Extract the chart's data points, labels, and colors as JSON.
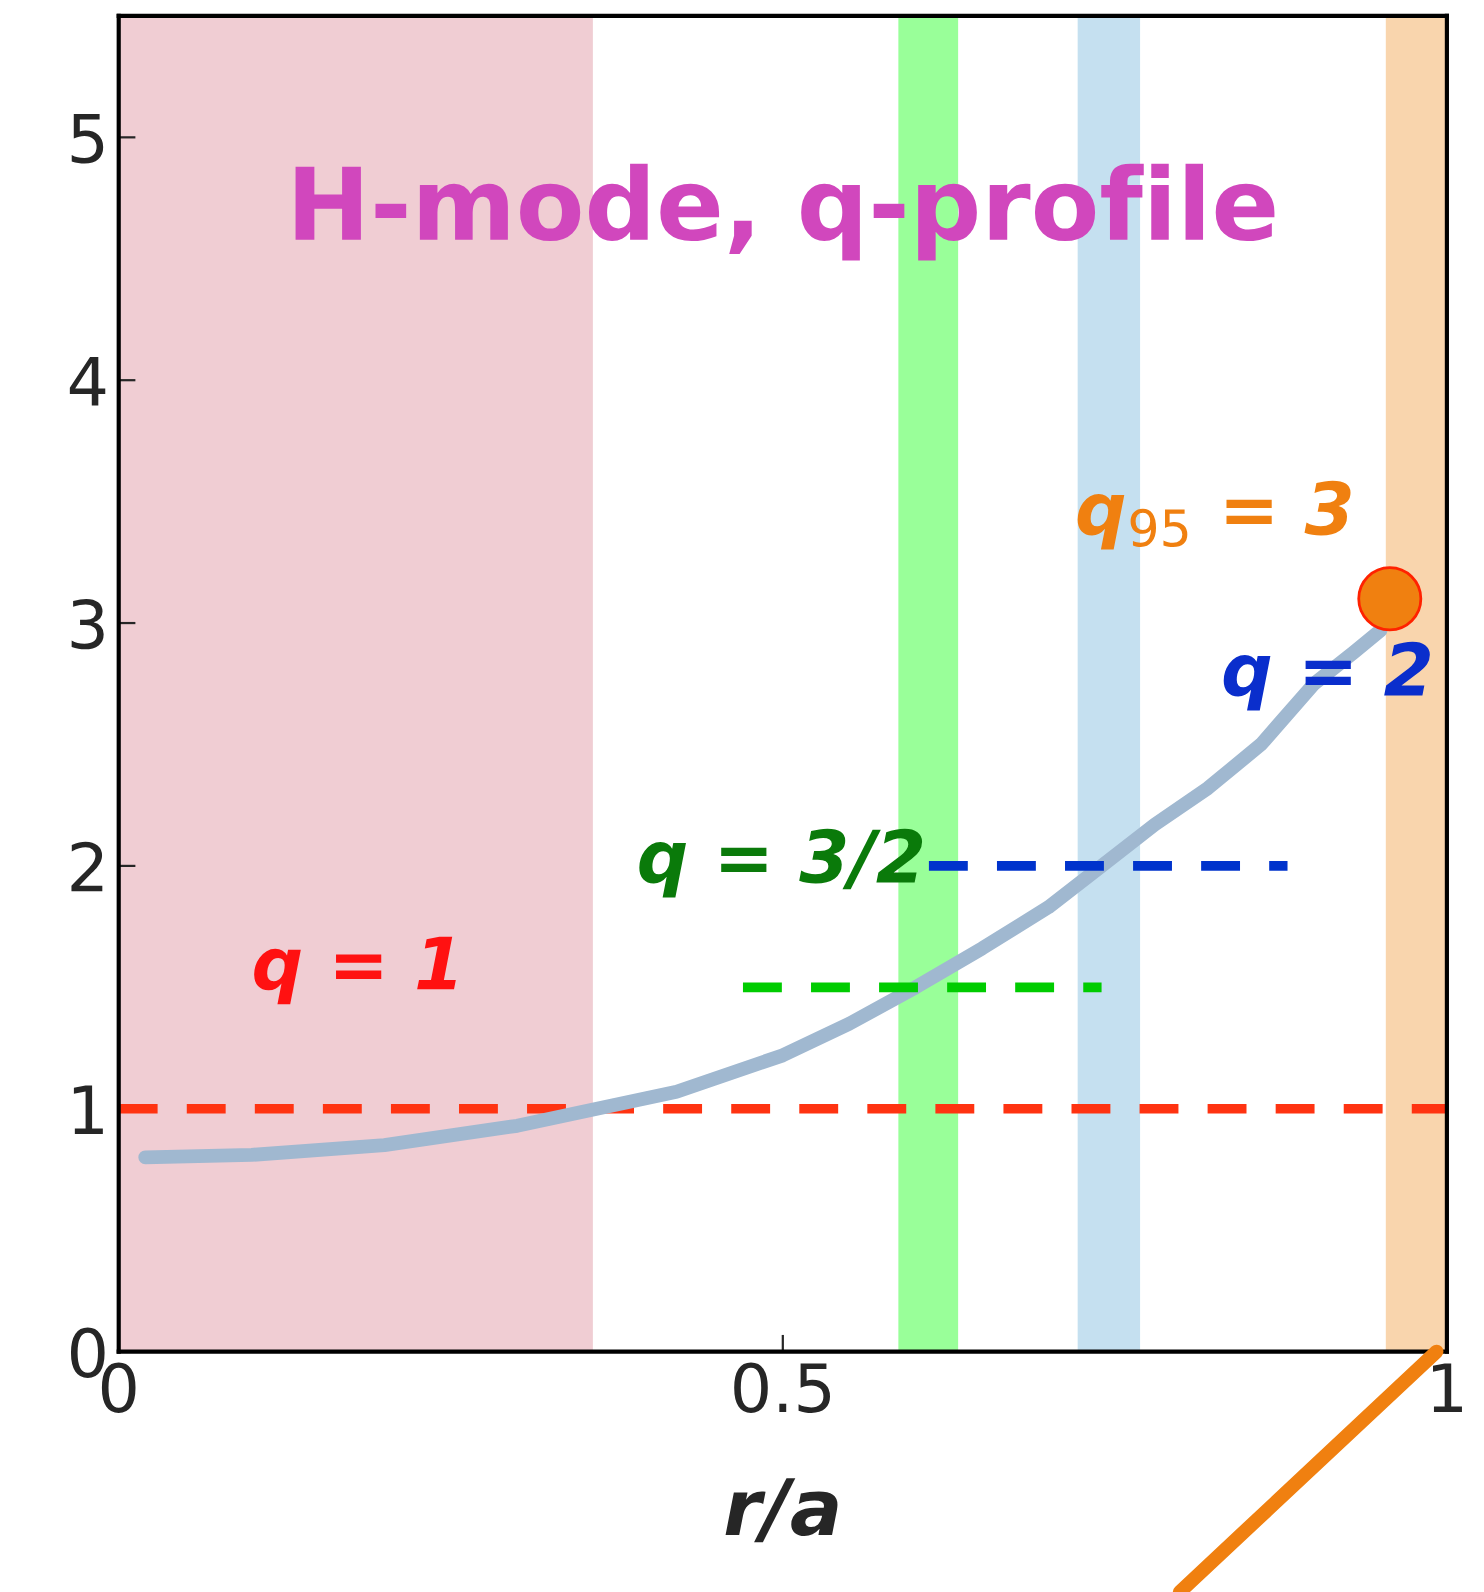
{
  "chart_data": {
    "type": "line",
    "title": "H-mode, q-profile",
    "xlabel": "r/a",
    "xlim": [
      0,
      1
    ],
    "ylim": [
      0,
      5.5
    ],
    "xticks": [
      0,
      0.5,
      1
    ],
    "yticks": [
      0,
      1,
      2,
      3,
      4,
      5
    ],
    "grid": false,
    "legend": false,
    "series": [
      {
        "color": "#a0b8d0",
        "x": [
          0.02,
          0.1,
          0.2,
          0.3,
          0.36,
          0.42,
          0.5,
          0.55,
          0.6,
          0.65,
          0.7,
          0.74,
          0.78,
          0.82,
          0.86,
          0.9,
          0.93,
          0.95
        ],
        "values": [
          0.8,
          0.81,
          0.85,
          0.93,
          1.0,
          1.07,
          1.22,
          1.35,
          1.5,
          1.66,
          1.83,
          2.0,
          2.17,
          2.32,
          2.5,
          2.75,
          2.88,
          2.97
        ]
      },
      {
        "type": "line",
        "line_style": "dashed",
        "color": "#00cc00",
        "x": [
          0.47,
          0.74
        ],
        "values": [
          1.5,
          1.5
        ]
      },
      {
        "type": "line",
        "line_style": "dashed",
        "color": "#0033cc",
        "x": [
          0.61,
          0.88
        ],
        "values": [
          2.0,
          2.0
        ]
      },
      {
        "type": "scatter",
        "marker": "circle",
        "color": "#f08010",
        "x": [
          0.957
        ],
        "values": [
          3.1
        ]
      }
    ],
    "ref_lines": [
      {
        "axis": "y",
        "value": 1,
        "color": "#ff3311",
        "line_style": "dashed"
      }
    ],
    "bands": [
      {
        "axis": "x",
        "from": 0,
        "to": 0.357,
        "color": "#f0cdd3"
      },
      {
        "axis": "x",
        "from": 0.587,
        "to": 0.632,
        "color": "#99ff99"
      },
      {
        "axis": "x",
        "from": 0.722,
        "to": 0.769,
        "color": "#c5e0f0"
      },
      {
        "axis": "x",
        "from": 0.954,
        "to": 1.0,
        "color": "#f9d5ad"
      }
    ],
    "annotations": [
      "q = 1",
      "q = 3/2",
      "q = 2",
      "q$_{95}$ = 3"
    ]
  }
}
